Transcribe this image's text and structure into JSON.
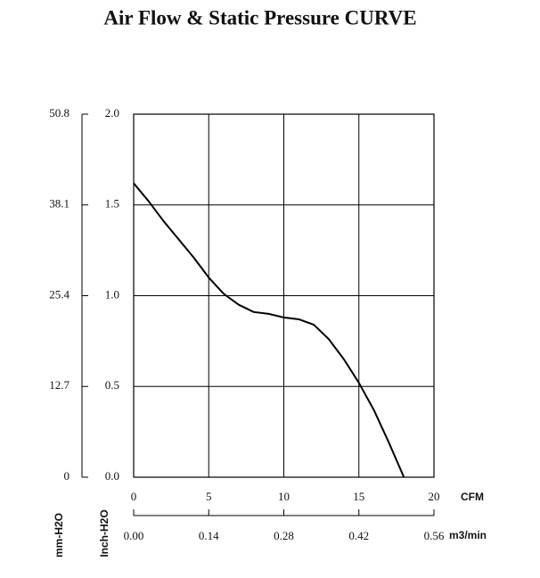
{
  "chart_data": {
    "type": "line",
    "title": "Air Flow & Static Pressure CURVE",
    "x": [
      0,
      1,
      2,
      3,
      4,
      5,
      6,
      7,
      8,
      9,
      10,
      11,
      12,
      13,
      14,
      15,
      16,
      17,
      18
    ],
    "series": [
      {
        "color": "#000000",
        "values": [
          1.62,
          1.52,
          1.41,
          1.31,
          1.21,
          1.1,
          1.01,
          0.95,
          0.91,
          0.9,
          0.88,
          0.87,
          0.84,
          0.76,
          0.65,
          0.52,
          0.37,
          0.19,
          0.0
        ]
      }
    ],
    "xlabel": "CFM",
    "xlim": [
      0,
      20
    ],
    "xticks": [
      0,
      5,
      10,
      15,
      20
    ],
    "x2label": "m3/min",
    "x2lim": [
      0,
      0.56
    ],
    "x2ticks": [
      {
        "value": 0,
        "label": "0.00"
      },
      {
        "value": 0.14,
        "label": "0.14"
      },
      {
        "value": 0.28,
        "label": "0.28"
      },
      {
        "value": 0.42,
        "label": "0.42"
      },
      {
        "value": 0.56,
        "label": "0.56"
      }
    ],
    "ylabel": "Inch-H2O",
    "ylim": [
      0,
      2
    ],
    "yticks": [
      {
        "value": 0,
        "label": "0.0"
      },
      {
        "value": 0.5,
        "label": "0.5"
      },
      {
        "value": 1,
        "label": "1.0"
      },
      {
        "value": 1.5,
        "label": "1.5"
      },
      {
        "value": 2,
        "label": "2.0"
      }
    ],
    "y2label": "mm-H2O",
    "y2lim": [
      0,
      50.8
    ],
    "y2ticks": [
      0,
      12.7,
      25.4,
      38.1,
      50.8
    ],
    "grid": true
  }
}
